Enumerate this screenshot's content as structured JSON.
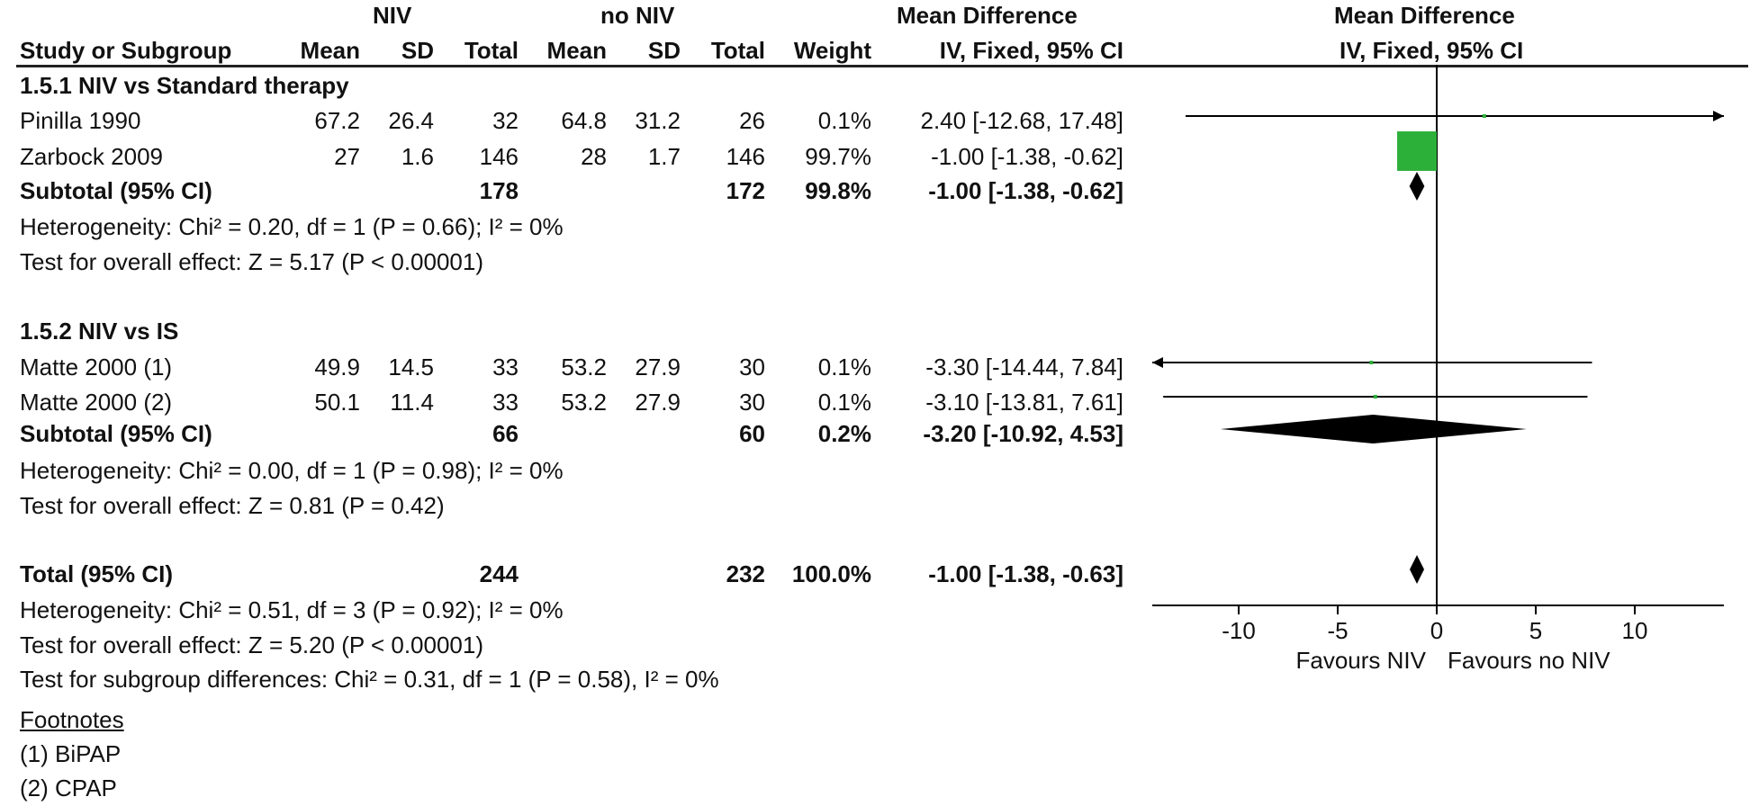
{
  "chart_data": {
    "type": "forest",
    "headers": {
      "group1": "NIV",
      "group2": "no NIV",
      "effect": "Mean Difference",
      "method": "IV, Fixed, 95% CI",
      "plot_title": "Mean Difference",
      "plot_method": "IV, Fixed, 95% CI",
      "study": "Study or Subgroup",
      "mean": "Mean",
      "sd": "SD",
      "total": "Total",
      "weight": "Weight"
    },
    "subgroups": [
      {
        "title": "1.5.1 NIV vs Standard therapy",
        "studies": [
          {
            "name": "Pinilla 1990",
            "m1": "67.2",
            "sd1": "26.4",
            "n1": "32",
            "m2": "64.8",
            "sd2": "31.2",
            "n2": "26",
            "weight": "0.1%",
            "ci": "2.40 [-12.68, 17.48]",
            "est": 2.4,
            "lo": -12.68,
            "hi": 17.48,
            "w": 0.1
          },
          {
            "name": "Zarbock 2009",
            "m1": "27",
            "sd1": "1.6",
            "n1": "146",
            "m2": "28",
            "sd2": "1.7",
            "n2": "146",
            "weight": "99.7%",
            "ci": "-1.00 [-1.38, -0.62]",
            "est": -1.0,
            "lo": -1.38,
            "hi": -0.62,
            "w": 99.7
          }
        ],
        "subtotal": {
          "label": "Subtotal (95% CI)",
          "n1": "178",
          "n2": "172",
          "weight": "99.8%",
          "ci": "-1.00 [-1.38, -0.62]",
          "est": -1.0,
          "lo": -1.38,
          "hi": -0.62
        },
        "heterogeneity": "Heterogeneity: Chi² = 0.20, df = 1 (P = 0.66); I² = 0%",
        "overall": "Test for overall effect: Z = 5.17 (P < 0.00001)"
      },
      {
        "title": "1.5.2 NIV vs IS",
        "studies": [
          {
            "name": "Matte 2000 (1)",
            "m1": "49.9",
            "sd1": "14.5",
            "n1": "33",
            "m2": "53.2",
            "sd2": "27.9",
            "n2": "30",
            "weight": "0.1%",
            "ci": "-3.30 [-14.44, 7.84]",
            "est": -3.3,
            "lo": -14.44,
            "hi": 7.84,
            "w": 0.1
          },
          {
            "name": "Matte 2000 (2)",
            "m1": "50.1",
            "sd1": "11.4",
            "n1": "33",
            "m2": "53.2",
            "sd2": "27.9",
            "n2": "30",
            "weight": "0.1%",
            "ci": "-3.10 [-13.81, 7.61]",
            "est": -3.1,
            "lo": -13.81,
            "hi": 7.61,
            "w": 0.1
          }
        ],
        "subtotal": {
          "label": "Subtotal (95% CI)",
          "n1": "66",
          "n2": "60",
          "weight": "0.2%",
          "ci": "-3.20 [-10.92, 4.53]",
          "est": -3.2,
          "lo": -10.92,
          "hi": 4.53
        },
        "heterogeneity": "Heterogeneity: Chi² = 0.00, df = 1 (P = 0.98); I² = 0%",
        "overall": "Test for overall effect: Z = 0.81 (P = 0.42)"
      }
    ],
    "total": {
      "label": "Total (95% CI)",
      "n1": "244",
      "n2": "232",
      "weight": "100.0%",
      "ci": "-1.00 [-1.38, -0.63]",
      "est": -1.0,
      "lo": -1.38,
      "hi": -0.63,
      "heterogeneity": "Heterogeneity: Chi² = 0.51, df = 3 (P = 0.92); I² = 0%",
      "overall": "Test for overall effect: Z = 5.20 (P < 0.00001)",
      "subgroup_diff": "Test for subgroup differences: Chi² = 0.31, df = 1 (P = 0.58), I² = 0%"
    },
    "axis": {
      "xlim": [
        -15,
        15
      ],
      "ticks": [
        -10,
        -5,
        0,
        5,
        10
      ],
      "tick_labels": [
        "-10",
        "-5",
        "0",
        "5",
        "10"
      ],
      "favours_left": "Favours NIV",
      "favours_right": "Favours no NIV"
    },
    "footnotes": {
      "title": "Footnotes",
      "items": [
        "(1) BiPAP",
        "(2) CPAP"
      ]
    },
    "colors": {
      "square": "#2db03a",
      "diamond": "#000000",
      "line": "#000000"
    }
  }
}
